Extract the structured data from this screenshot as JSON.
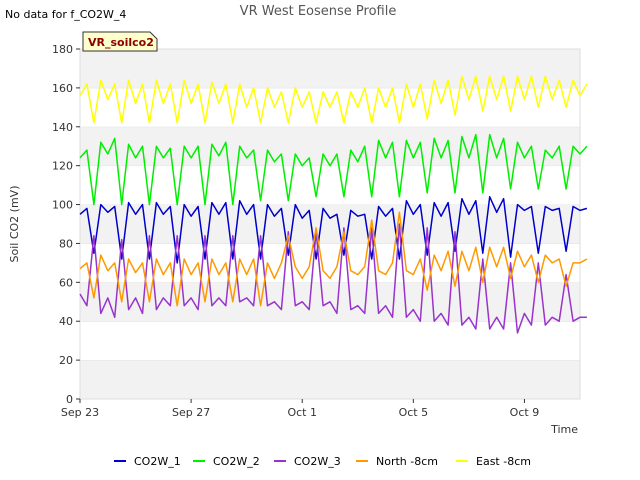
{
  "header": {
    "no_data_text": "No data for f_CO2W_4",
    "badge": "VR_soilco2"
  },
  "chart_data": {
    "type": "line",
    "title": "VR West Eosense Profile",
    "xlabel": "Time",
    "ylabel": "Soil CO2 (mV)",
    "ylim": [
      0,
      180
    ],
    "yticks": [
      0,
      20,
      40,
      60,
      80,
      100,
      120,
      140,
      160,
      180
    ],
    "xlim": [
      "2023-09-23",
      "2023-10-11"
    ],
    "xticks": [
      {
        "date": "2023-09-23",
        "label": "Sep 23"
      },
      {
        "date": "2023-09-27",
        "label": "Sep 27"
      },
      {
        "date": "2023-10-01",
        "label": "Oct 1"
      },
      {
        "date": "2023-10-05",
        "label": "Oct 5"
      },
      {
        "date": "2023-10-09",
        "label": "Oct 9"
      }
    ],
    "grid": "horizontal bands",
    "legend": "bottom",
    "x": [
      "2023-09-23 00:00",
      "2023-09-23 06:00",
      "2023-09-23 12:00",
      "2023-09-23 18:00",
      "2023-09-24 00:00",
      "2023-09-24 06:00",
      "2023-09-24 12:00",
      "2023-09-24 18:00",
      "2023-09-25 00:00",
      "2023-09-25 06:00",
      "2023-09-25 12:00",
      "2023-09-25 18:00",
      "2023-09-26 00:00",
      "2023-09-26 06:00",
      "2023-09-26 12:00",
      "2023-09-26 18:00",
      "2023-09-27 00:00",
      "2023-09-27 06:00",
      "2023-09-27 12:00",
      "2023-09-27 18:00",
      "2023-09-28 00:00",
      "2023-09-28 06:00",
      "2023-09-28 12:00",
      "2023-09-28 18:00",
      "2023-09-29 00:00",
      "2023-09-29 06:00",
      "2023-09-29 12:00",
      "2023-09-29 18:00",
      "2023-09-30 00:00",
      "2023-09-30 06:00",
      "2023-09-30 12:00",
      "2023-09-30 18:00",
      "2023-10-01 00:00",
      "2023-10-01 06:00",
      "2023-10-01 12:00",
      "2023-10-01 18:00",
      "2023-10-02 00:00",
      "2023-10-02 06:00",
      "2023-10-02 12:00",
      "2023-10-02 18:00",
      "2023-10-03 00:00",
      "2023-10-03 06:00",
      "2023-10-03 12:00",
      "2023-10-03 18:00",
      "2023-10-04 00:00",
      "2023-10-04 06:00",
      "2023-10-04 12:00",
      "2023-10-04 18:00",
      "2023-10-05 00:00",
      "2023-10-05 06:00",
      "2023-10-05 12:00",
      "2023-10-05 18:00",
      "2023-10-06 00:00",
      "2023-10-06 06:00",
      "2023-10-06 12:00",
      "2023-10-06 18:00",
      "2023-10-07 00:00",
      "2023-10-07 06:00",
      "2023-10-07 12:00",
      "2023-10-07 18:00",
      "2023-10-08 00:00",
      "2023-10-08 06:00",
      "2023-10-08 12:00",
      "2023-10-08 18:00",
      "2023-10-09 00:00",
      "2023-10-09 06:00",
      "2023-10-09 12:00",
      "2023-10-09 18:00",
      "2023-10-10 00:00",
      "2023-10-10 06:00",
      "2023-10-10 12:00",
      "2023-10-10 18:00",
      "2023-10-11 00:00",
      "2023-10-11 06:00"
    ],
    "series": [
      {
        "name": "CO2W_1",
        "color": "#0000cc",
        "values": [
          95,
          98,
          75,
          100,
          96,
          99,
          72,
          101,
          95,
          100,
          72,
          101,
          95,
          99,
          70,
          100,
          94,
          99,
          72,
          101,
          95,
          101,
          72,
          102,
          95,
          100,
          72,
          100,
          94,
          98,
          74,
          100,
          93,
          97,
          72,
          98,
          93,
          95,
          74,
          97,
          94,
          95,
          72,
          99,
          94,
          98,
          72,
          102,
          95,
          100,
          74,
          101,
          94,
          101,
          76,
          103,
          95,
          102,
          75,
          104,
          96,
          103,
          73,
          100,
          97,
          99,
          75,
          99,
          97,
          98,
          76,
          99,
          97,
          98
        ]
      },
      {
        "name": "CO2W_2",
        "color": "#00ee00",
        "values": [
          124,
          128,
          100,
          132,
          126,
          134,
          100,
          131,
          124,
          130,
          100,
          130,
          124,
          129,
          100,
          130,
          124,
          130,
          100,
          131,
          125,
          132,
          100,
          130,
          124,
          128,
          102,
          128,
          122,
          126,
          102,
          126,
          120,
          124,
          104,
          126,
          120,
          126,
          104,
          128,
          122,
          130,
          104,
          133,
          124,
          132,
          104,
          133,
          124,
          132,
          106,
          134,
          124,
          133,
          106,
          135,
          124,
          136,
          106,
          136,
          124,
          134,
          108,
          132,
          124,
          130,
          108,
          128,
          124,
          130,
          108,
          130,
          126,
          130
        ]
      },
      {
        "name": "CO2W_3",
        "color": "#9933cc",
        "values": [
          54,
          48,
          84,
          44,
          52,
          42,
          82,
          46,
          52,
          44,
          84,
          46,
          52,
          48,
          84,
          48,
          52,
          46,
          84,
          48,
          52,
          48,
          84,
          50,
          52,
          48,
          84,
          48,
          50,
          46,
          86,
          48,
          50,
          46,
          86,
          48,
          50,
          44,
          88,
          46,
          48,
          44,
          88,
          44,
          48,
          42,
          90,
          42,
          46,
          40,
          88,
          40,
          44,
          38,
          86,
          38,
          42,
          36,
          72,
          36,
          42,
          36,
          70,
          34,
          44,
          38,
          70,
          38,
          42,
          40,
          64,
          40,
          42,
          42
        ]
      },
      {
        "name": "North -8cm",
        "color": "#ff9900",
        "values": [
          67,
          70,
          52,
          74,
          66,
          70,
          50,
          72,
          65,
          70,
          50,
          72,
          64,
          70,
          48,
          72,
          64,
          70,
          50,
          72,
          64,
          70,
          50,
          72,
          64,
          72,
          48,
          70,
          62,
          70,
          84,
          68,
          62,
          68,
          88,
          66,
          62,
          68,
          86,
          66,
          64,
          68,
          92,
          66,
          64,
          70,
          96,
          66,
          64,
          72,
          56,
          74,
          66,
          76,
          58,
          76,
          66,
          78,
          60,
          78,
          68,
          78,
          62,
          76,
          68,
          74,
          60,
          74,
          70,
          72,
          58,
          70,
          70,
          72
        ]
      },
      {
        "name": "East -8cm",
        "color": "#ffff00",
        "values": [
          156,
          162,
          142,
          164,
          154,
          162,
          142,
          164,
          152,
          162,
          142,
          164,
          152,
          162,
          142,
          164,
          152,
          162,
          142,
          163,
          152,
          162,
          142,
          162,
          150,
          160,
          142,
          160,
          150,
          158,
          142,
          160,
          150,
          158,
          142,
          158,
          150,
          158,
          142,
          158,
          150,
          160,
          142,
          160,
          150,
          160,
          142,
          162,
          150,
          162,
          144,
          164,
          152,
          164,
          146,
          166,
          154,
          166,
          148,
          166,
          154,
          166,
          148,
          166,
          154,
          166,
          150,
          166,
          154,
          164,
          150,
          164,
          156,
          162
        ]
      }
    ]
  }
}
